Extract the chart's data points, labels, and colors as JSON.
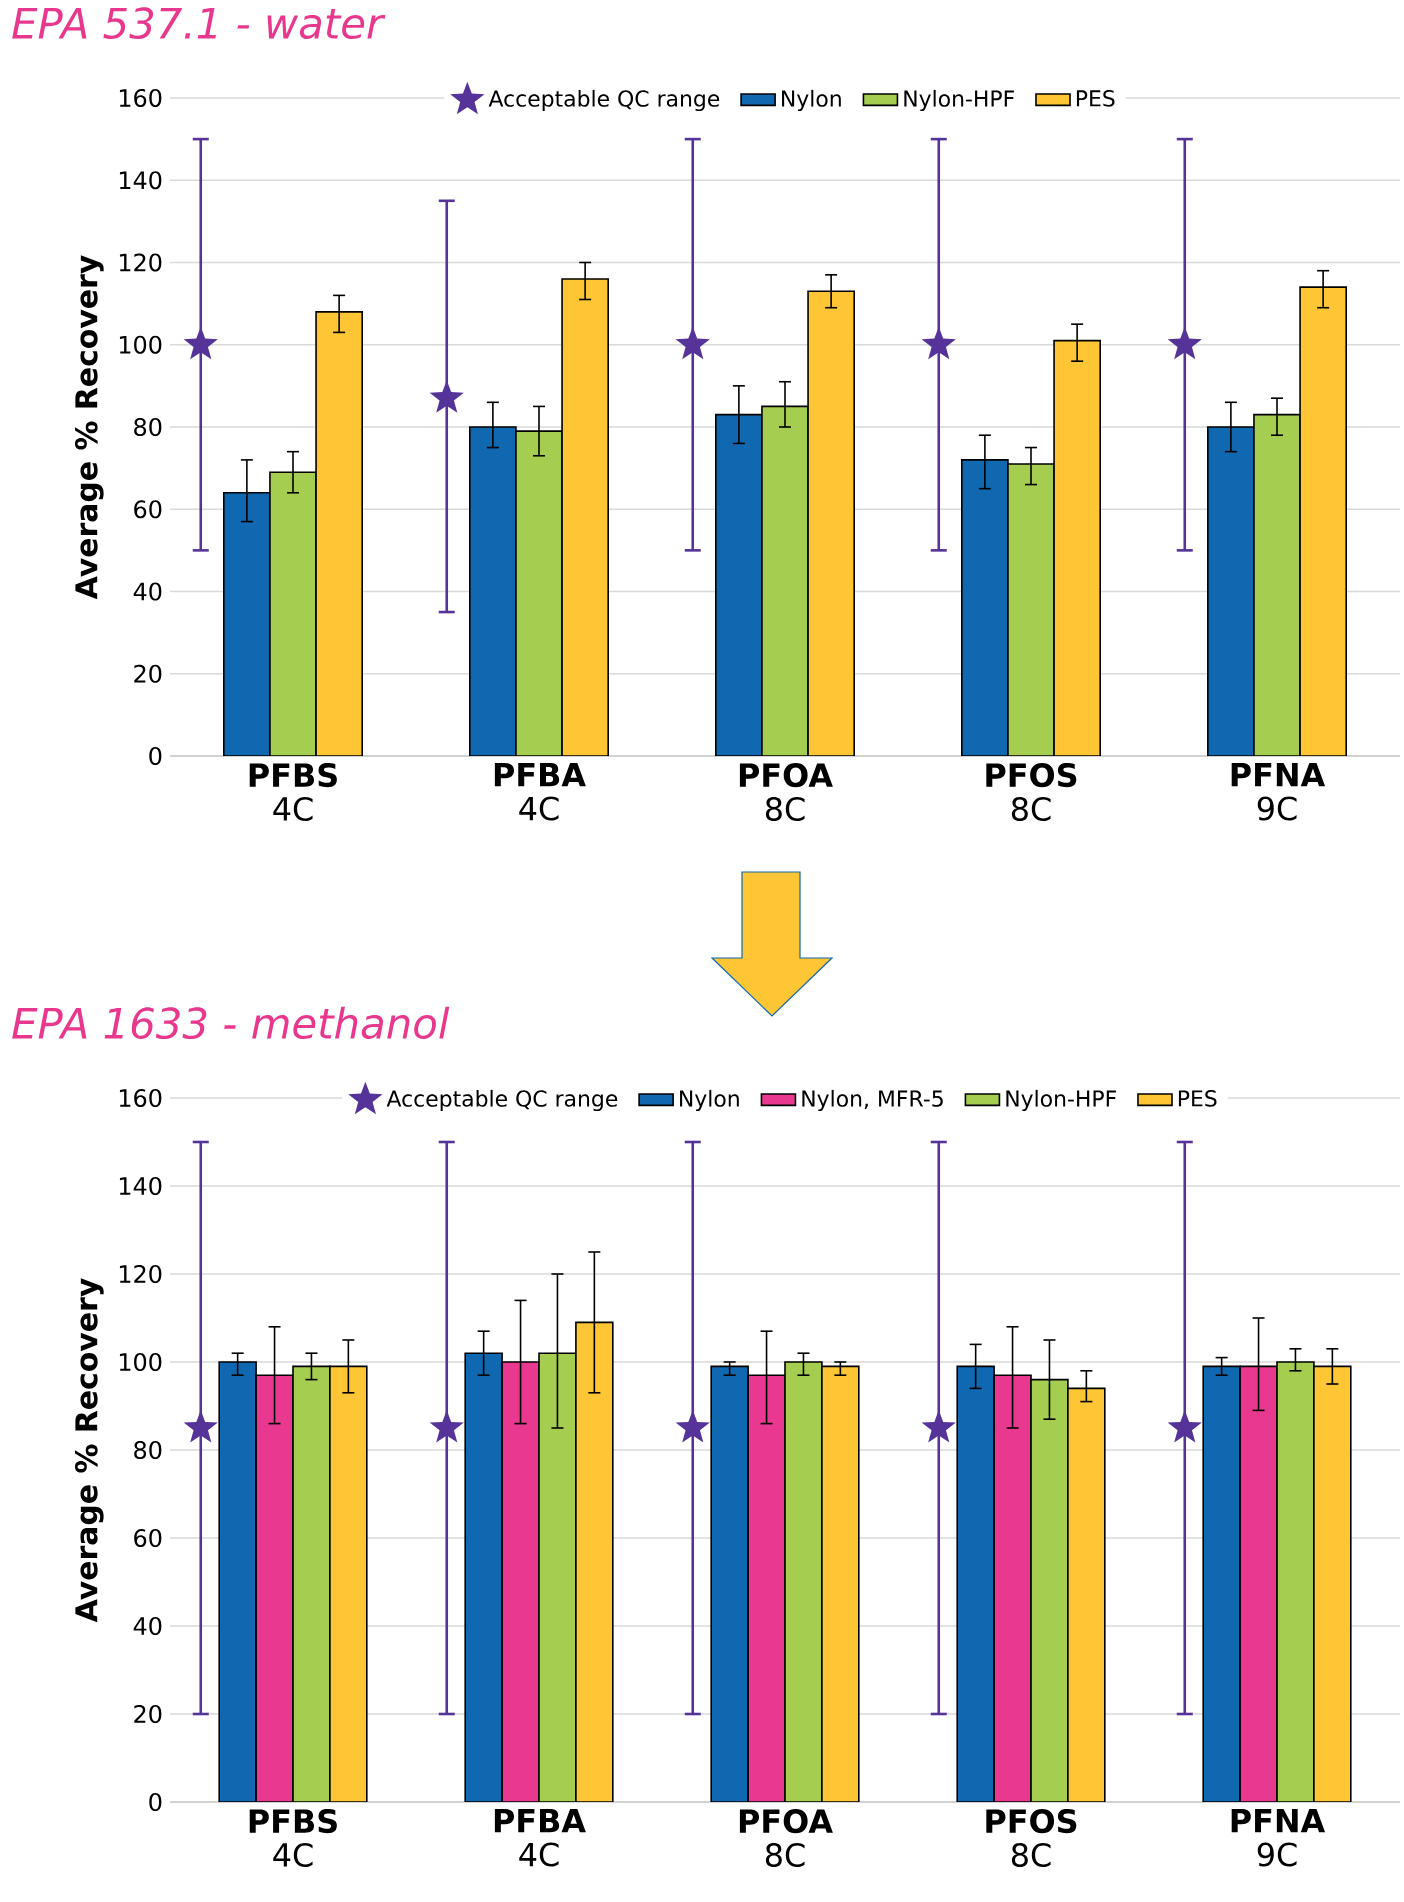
{
  "chart_data": [
    {
      "type": "bar",
      "title": "EPA 537.1 - water",
      "ylabel": "Average % Recovery",
      "categories": [
        "**PFBS** 4C",
        "**PFBA** 4C",
        "**PFOA** 8C",
        "**PFOS** 8C",
        "**PFNA** 9C"
      ],
      "ylim": [
        0,
        160
      ],
      "yticks": [
        0,
        20,
        40,
        60,
        80,
        100,
        120,
        140,
        160
      ],
      "grid": "y",
      "legend": "top",
      "series": [
        {
          "name": "Acceptable QC range",
          "type": "scatter",
          "marker": "star",
          "color": "#553399",
          "values": [
            100,
            87,
            100,
            100,
            100
          ],
          "errors": [
            [
              50,
              150
            ],
            [
              35,
              135
            ],
            [
              50,
              150
            ],
            [
              50,
              150
            ],
            [
              50,
              150
            ]
          ]
        },
        {
          "name": "Nylon",
          "color": "#1068b0",
          "values": [
            64,
            80,
            83,
            72,
            80
          ],
          "errors": [
            [
              57,
              72
            ],
            [
              75,
              86
            ],
            [
              76,
              90
            ],
            [
              65,
              78
            ],
            [
              74,
              86
            ]
          ]
        },
        {
          "name": "Nylon-HPF",
          "color": "#a5cd4f",
          "values": [
            69,
            79,
            85,
            71,
            83
          ],
          "errors": [
            [
              64,
              74
            ],
            [
              73,
              85
            ],
            [
              80,
              91
            ],
            [
              66,
              75
            ],
            [
              78,
              87
            ]
          ]
        },
        {
          "name": "PES",
          "color": "#fec534",
          "values": [
            108,
            116,
            113,
            101,
            114
          ],
          "errors": [
            [
              103,
              112
            ],
            [
              111,
              120
            ],
            [
              109,
              117
            ],
            [
              96,
              105
            ],
            [
              109,
              118
            ]
          ]
        }
      ]
    },
    {
      "type": "bar",
      "title": "EPA 1633 - methanol",
      "ylabel": "Average % Recovery",
      "categories": [
        "**PFBS** 4C",
        "**PFBA** 4C",
        "**PFOA** 8C",
        "**PFOS** 8C",
        "**PFNA** 9C"
      ],
      "ylim": [
        0,
        160
      ],
      "yticks": [
        0,
        20,
        40,
        60,
        80,
        100,
        120,
        140,
        160
      ],
      "grid": "y",
      "legend": "top",
      "series": [
        {
          "name": "Acceptable QC range",
          "type": "scatter",
          "marker": "star",
          "color": "#553399",
          "values": [
            85,
            85,
            85,
            85,
            85
          ],
          "errors": [
            [
              20,
              150
            ],
            [
              20,
              150
            ],
            [
              20,
              150
            ],
            [
              20,
              150
            ],
            [
              20,
              150
            ]
          ]
        },
        {
          "name": "Nylon",
          "color": "#1068b0",
          "values": [
            100,
            102,
            99,
            99,
            99
          ],
          "errors": [
            [
              97,
              102
            ],
            [
              97,
              107
            ],
            [
              97,
              100
            ],
            [
              94,
              104
            ],
            [
              97,
              101
            ]
          ]
        },
        {
          "name": "Nylon, MFR-5",
          "color": "#e8388f",
          "values": [
            97,
            100,
            97,
            97,
            99
          ],
          "errors": [
            [
              86,
              108
            ],
            [
              86,
              114
            ],
            [
              86,
              107
            ],
            [
              85,
              108
            ],
            [
              89,
              110
            ]
          ]
        },
        {
          "name": "Nylon-HPF",
          "color": "#a5cd4f",
          "values": [
            99,
            102,
            100,
            96,
            100
          ],
          "errors": [
            [
              96,
              102
            ],
            [
              85,
              120
            ],
            [
              97,
              102
            ],
            [
              87,
              105
            ],
            [
              98,
              103
            ]
          ]
        },
        {
          "name": "PES",
          "color": "#fec534",
          "values": [
            99,
            109,
            99,
            94,
            99
          ],
          "errors": [
            [
              93,
              105
            ],
            [
              93,
              125
            ],
            [
              97,
              100
            ],
            [
              91,
              98
            ],
            [
              95,
              103
            ]
          ]
        }
      ]
    }
  ]
}
